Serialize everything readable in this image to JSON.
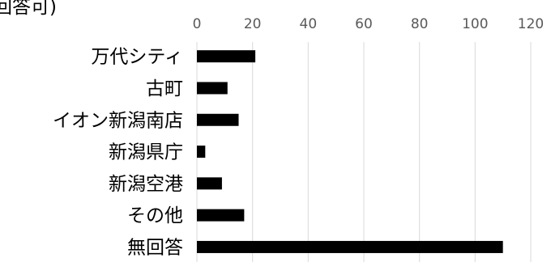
{
  "chart_data": {
    "type": "bar",
    "orientation": "horizontal",
    "title": "回答可)",
    "categories": [
      "万代シティ",
      "古町",
      "イオン新潟南店",
      "新潟県庁",
      "新潟空港",
      "その他",
      "無回答"
    ],
    "values": [
      21,
      11,
      15,
      3,
      9,
      17,
      110
    ],
    "xlim": [
      0,
      120
    ],
    "x_ticks": [
      "0",
      "20",
      "40",
      "60",
      "80",
      "100",
      "120"
    ],
    "x_tick_values": [
      0,
      20,
      40,
      60,
      80,
      100,
      120
    ],
    "grid": true,
    "bar_color": "#000000",
    "grid_color": "#d9d9d9"
  }
}
